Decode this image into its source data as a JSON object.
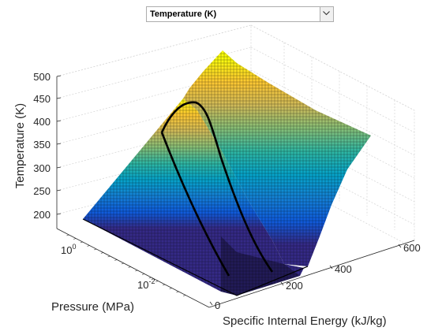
{
  "selector": {
    "selected": "Temperature (K)"
  },
  "chart_data": {
    "type": "surface",
    "title": "",
    "zlabel": "Temperature (K)",
    "ylabel": "Pressure (MPa)",
    "xlabel": "Specific Internal Energy (kJ/kg)",
    "zticks": [
      "200",
      "250",
      "300",
      "350",
      "400",
      "450",
      "500"
    ],
    "xticks": [
      "0",
      "200",
      "400",
      "600"
    ],
    "yticks": [
      {
        "base": "10",
        "exp": "-2"
      },
      {
        "base": "10",
        "exp": "0"
      }
    ],
    "xlim": [
      0,
      600
    ],
    "zlim": [
      180,
      500
    ],
    "ylog": true,
    "grid": true,
    "colormap": "parula",
    "colormap_stops": [
      "#352a87",
      "#0f5cdd",
      "#1481d6",
      "#06a4ca",
      "#2eb7a4",
      "#87bf77",
      "#d1bb59",
      "#fec832",
      "#f9fb0e"
    ],
    "surface_samples": [
      {
        "energy_kJkg": 60,
        "pressure_MPa": 1.0,
        "temperature_K": 190
      },
      {
        "energy_kJkg": 180,
        "pressure_MPa": 1.0,
        "temperature_K": 400
      },
      {
        "energy_kJkg": 210,
        "pressure_MPa": 3.0,
        "temperature_K": 445
      },
      {
        "energy_kJkg": 240,
        "pressure_MPa": 5.0,
        "temperature_K": 500
      },
      {
        "energy_kJkg": 600,
        "pressure_MPa": 5.0,
        "temperature_K": 370
      },
      {
        "energy_kJkg": 250,
        "pressure_MPa": 0.005,
        "temperature_K": 185
      },
      {
        "energy_kJkg": 400,
        "pressure_MPa": 0.005,
        "temperature_K": 225
      }
    ],
    "saturation_dome": {
      "peak_temperature_K": 445
    }
  }
}
